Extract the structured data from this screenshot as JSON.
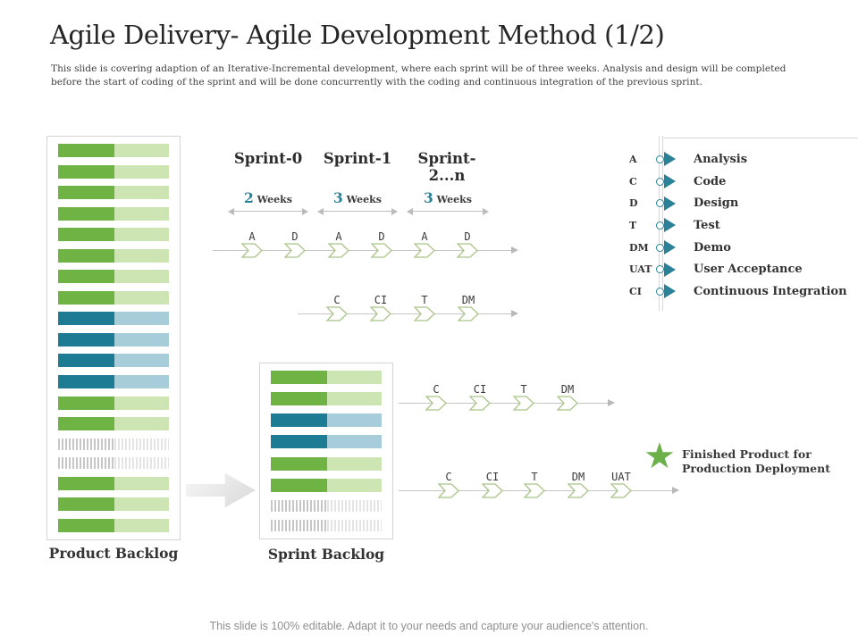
{
  "slide": {
    "title": "Agile Delivery- Agile Development Method (1/2)",
    "subtitle": "This slide is covering adaption of an Iterative-Incremental development, where each sprint will be of three weeks. Analysis and design will be completed before the start of coding of the sprint and will be done concurrently with the coding and continuous integration of the previous sprint.",
    "footer": "This slide is 100% editable. Adapt it to your needs and capture your audience's attention."
  },
  "backlogs": {
    "product": {
      "label": "Product Backlog",
      "bars": [
        "green",
        "green",
        "green",
        "green",
        "green",
        "green",
        "green",
        "green",
        "blue",
        "blue",
        "blue",
        "blue",
        "green",
        "green",
        "hatch",
        "hatch",
        "green",
        "green",
        "green"
      ]
    },
    "sprint": {
      "label": "Sprint Backlog",
      "bars": [
        "green",
        "green",
        "blue",
        "blue",
        "green",
        "green",
        "hatch",
        "hatch"
      ]
    }
  },
  "sprints": [
    {
      "name": "Sprint-0",
      "duration_value": "2",
      "duration_unit": "Weeks"
    },
    {
      "name": "Sprint-1",
      "duration_value": "3",
      "duration_unit": "Weeks"
    },
    {
      "name": "Sprint-2...n",
      "duration_value": "3",
      "duration_unit": "Weeks"
    }
  ],
  "timelines": {
    "row1": [
      "A",
      "D",
      "A",
      "D",
      "A",
      "D"
    ],
    "row2": [
      "C",
      "CI",
      "T",
      "DM"
    ],
    "row3": [
      "C",
      "CI",
      "T",
      "DM"
    ],
    "row4": [
      "C",
      "CI",
      "T",
      "DM",
      "UAT"
    ]
  },
  "legend": [
    {
      "abbr": "A",
      "term": "Analysis"
    },
    {
      "abbr": "C",
      "term": "Code"
    },
    {
      "abbr": "D",
      "term": "Design"
    },
    {
      "abbr": "T",
      "term": "Test"
    },
    {
      "abbr": "DM",
      "term": "Demo"
    },
    {
      "abbr": "UAT",
      "term": "User Acceptance"
    },
    {
      "abbr": "CI",
      "term": "Continuous Integration"
    }
  ],
  "finished_product": {
    "line1": "Finished Product for",
    "line2": "Production Deployment"
  },
  "colors": {
    "green_dark": "#6fb344",
    "green_light": "#cde4b3",
    "blue_dark": "#1d7b94",
    "blue_light": "#a6cdd9",
    "accent_teal": "#2b8298",
    "star_green": "#6cb04a",
    "chevron_border": "#a9c588"
  }
}
